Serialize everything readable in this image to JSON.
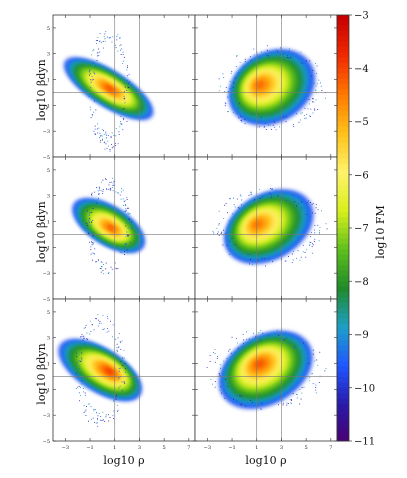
{
  "chart_data": {
    "type": "heatmap",
    "layout": {
      "rows": 3,
      "cols": 2
    },
    "xlabel": "log10 ρ",
    "ylabel": "log10 βdyn",
    "xlim": [
      -4,
      7.5
    ],
    "ylim": [
      -5,
      6
    ],
    "xticks": [
      -3,
      -1,
      1,
      3,
      5,
      7
    ],
    "yticks": [
      -5,
      -3,
      -1,
      1,
      3,
      5
    ],
    "reference_lines": {
      "x": [
        1,
        3
      ],
      "y": [
        0
      ]
    },
    "colorbar": {
      "label": "log10 FM",
      "range": [
        -11,
        -3
      ],
      "ticks": [
        -3,
        -4,
        -5,
        -6,
        -7,
        -8,
        -9,
        -10,
        -11
      ],
      "tick_labels": [
        "−3",
        "−4",
        "−5",
        "−6",
        "−7",
        "−8",
        "−9",
        "−10",
        "−11"
      ],
      "colormap": [
        "#4b006e",
        "#2a1aa8",
        "#1f55ff",
        "#1da0c8",
        "#1f8a2a",
        "#5dbf1c",
        "#d8ef1a",
        "#fff36b",
        "#ffc21a",
        "#ff7a00",
        "#f02a00",
        "#c80000"
      ]
    },
    "panels": [
      {
        "row": 0,
        "col": 0,
        "x_range": [
          -1.8,
          2.8
        ],
        "y_range": [
          -4.6,
          5.2
        ],
        "peak": [
          0.6,
          0.3
        ],
        "peak_value": -4.0
      },
      {
        "row": 0,
        "col": 1,
        "x_range": [
          -2.5,
          7.0
        ],
        "y_range": [
          -4.0,
          4.8
        ],
        "peak": [
          1.2,
          0.6
        ],
        "peak_value": -4.2
      },
      {
        "row": 1,
        "col": 0,
        "x_range": [
          -2.0,
          3.0
        ],
        "y_range": [
          -3.2,
          4.6
        ],
        "peak": [
          0.7,
          0.5
        ],
        "peak_value": -4.1
      },
      {
        "row": 1,
        "col": 1,
        "x_range": [
          -3.0,
          7.0
        ],
        "y_range": [
          -3.5,
          4.7
        ],
        "peak": [
          1.0,
          0.8
        ],
        "peak_value": -4.3
      },
      {
        "row": 2,
        "col": 0,
        "x_range": [
          -3.0,
          2.6
        ],
        "y_range": [
          -4.0,
          5.0
        ],
        "peak": [
          0.6,
          0.4
        ],
        "peak_value": -3.8
      },
      {
        "row": 2,
        "col": 1,
        "x_range": [
          -3.5,
          7.0
        ],
        "y_range": [
          -3.8,
          4.8
        ],
        "peak": [
          1.2,
          1.0
        ],
        "peak_value": -4.0
      }
    ]
  }
}
